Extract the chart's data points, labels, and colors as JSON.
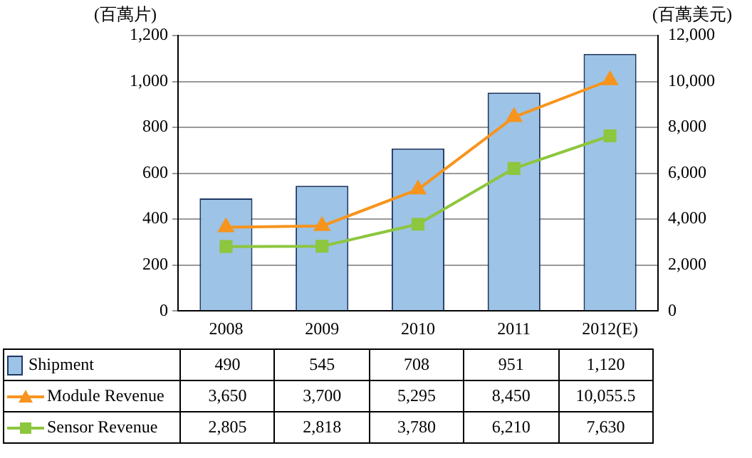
{
  "chart_data": {
    "type": "bar",
    "ylabel": "(百萬片)",
    "y2label": "(百萬美元)",
    "categories": [
      "2008",
      "2009",
      "2010",
      "2011",
      "2012(E)"
    ],
    "series": [
      {
        "name": "Shipment",
        "color": "#9dc3e6",
        "values": [
          490,
          545,
          708,
          951,
          1120
        ],
        "value_labels": [
          "490",
          "545",
          "708",
          "951",
          "1,120"
        ]
      },
      {
        "name": "Module Revenue",
        "type": "line",
        "axis": "y2",
        "marker": "triangle",
        "color": "#f7941d",
        "values": [
          3650,
          3700,
          5295,
          8450,
          10055.5
        ],
        "value_labels": [
          "3,650",
          "3,700",
          "5,295",
          "8,450",
          "10,055.5"
        ]
      },
      {
        "name": "Sensor Revenue",
        "type": "line",
        "axis": "y2",
        "marker": "square",
        "color": "#8dc63f",
        "values": [
          2805,
          2818,
          3780,
          6210,
          7630
        ],
        "value_labels": [
          "2,805",
          "2,818",
          "3,780",
          "6,210",
          "7,630"
        ]
      }
    ],
    "ylim": [
      0,
      1200
    ],
    "yticks": [
      0,
      200,
      400,
      600,
      800,
      {
        "value": 1000,
        "label": "1,000"
      },
      {
        "value": 1200,
        "label": "1,200"
      }
    ],
    "y2lim": [
      0,
      12000
    ],
    "y2ticks": [
      0,
      {
        "value": 2000,
        "label": "2,000"
      },
      {
        "value": 4000,
        "label": "4,000"
      },
      {
        "value": 6000,
        "label": "6,000"
      },
      {
        "value": 8000,
        "label": "8,000"
      },
      {
        "value": 10000,
        "label": "10,000"
      },
      {
        "value": 12000,
        "label": "12,000"
      }
    ],
    "grid": "y",
    "legend": "bottom"
  }
}
